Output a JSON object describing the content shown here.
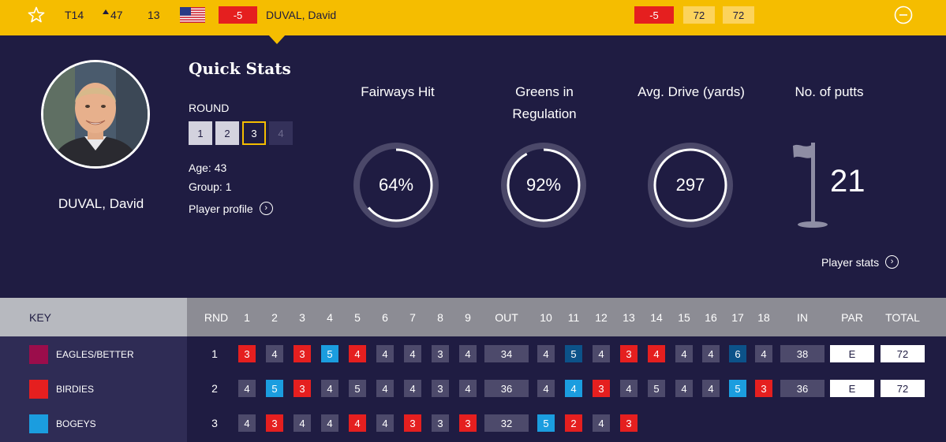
{
  "header": {
    "position": "T14",
    "movement": "47",
    "thru": "13",
    "country_flag": "usa-flag",
    "score_to_par": "-5",
    "player_name": "DUVAL, David",
    "today_score": "-5",
    "round_scores": [
      "72",
      "72"
    ],
    "colors": {
      "bar": "#f5bd00",
      "score_red": "#e51f1f"
    }
  },
  "profile": {
    "name": "DUVAL, David",
    "quick_stats_title": "Quick Stats",
    "round_label": "ROUND",
    "rounds": [
      "1",
      "2",
      "3",
      "4"
    ],
    "selected_round": "3",
    "age": "Age: 43",
    "group": "Group: 1",
    "profile_link": "Player profile"
  },
  "stats": {
    "fairways": {
      "title": "Fairways Hit",
      "value": "64%",
      "fraction": 0.64
    },
    "greens": {
      "title_1": "Greens in",
      "title_2": "Regulation",
      "value": "92%",
      "fraction": 0.92
    },
    "drive": {
      "title": "Avg. Drive (yards)",
      "value": "297",
      "fraction": 1.0
    },
    "putts": {
      "title": "No. of putts",
      "value": "21"
    },
    "stats_link": "Player stats"
  },
  "key": {
    "title": "KEY",
    "items": [
      {
        "label": "EAGLES/BETTER",
        "color": "#9b0d4b"
      },
      {
        "label": "BIRDIES",
        "color": "#e51f1f"
      },
      {
        "label": "BOGEYS",
        "color": "#1b9ddf"
      }
    ]
  },
  "scorecard": {
    "headers": {
      "rnd": "RND",
      "front": [
        "1",
        "2",
        "3",
        "4",
        "5",
        "6",
        "7",
        "8",
        "9"
      ],
      "out": "OUT",
      "back": [
        "10",
        "11",
        "12",
        "13",
        "14",
        "15",
        "16",
        "17",
        "18"
      ],
      "in": "IN",
      "par": "PAR",
      "total": "TOTAL"
    },
    "rows": [
      {
        "rnd": "1",
        "front": [
          "3",
          "4",
          "3",
          "5",
          "4",
          "4",
          "4",
          "3",
          "4"
        ],
        "front_type": [
          "bird",
          "par",
          "bird",
          "bog",
          "bird",
          "par",
          "par",
          "par",
          "par"
        ],
        "out": "34",
        "back": [
          "4",
          "5",
          "4",
          "3",
          "4",
          "4",
          "4",
          "6",
          "4"
        ],
        "back_type": [
          "par",
          "dbl",
          "par",
          "bird",
          "bird",
          "par",
          "par",
          "dbl",
          "par"
        ],
        "in": "38",
        "par": "E",
        "total": "72"
      },
      {
        "rnd": "2",
        "front": [
          "4",
          "5",
          "3",
          "4",
          "5",
          "4",
          "4",
          "3",
          "4"
        ],
        "front_type": [
          "par",
          "bog",
          "bird",
          "par",
          "par",
          "par",
          "par",
          "par",
          "par"
        ],
        "out": "36",
        "back": [
          "4",
          "4",
          "3",
          "4",
          "5",
          "4",
          "4",
          "5",
          "3"
        ],
        "back_type": [
          "par",
          "bog",
          "bird",
          "par",
          "par",
          "par",
          "par",
          "bog",
          "bird"
        ],
        "in": "36",
        "par": "E",
        "total": "72"
      },
      {
        "rnd": "3",
        "front": [
          "4",
          "3",
          "4",
          "4",
          "4",
          "4",
          "3",
          "3",
          "3"
        ],
        "front_type": [
          "par",
          "bird",
          "par",
          "par",
          "bird",
          "par",
          "bird",
          "par",
          "bird"
        ],
        "out": "32",
        "back": [
          "5",
          "2",
          "4",
          "3"
        ],
        "back_type": [
          "bog",
          "bird",
          "par",
          "bird"
        ],
        "in": "",
        "par": "",
        "total": ""
      }
    ]
  }
}
